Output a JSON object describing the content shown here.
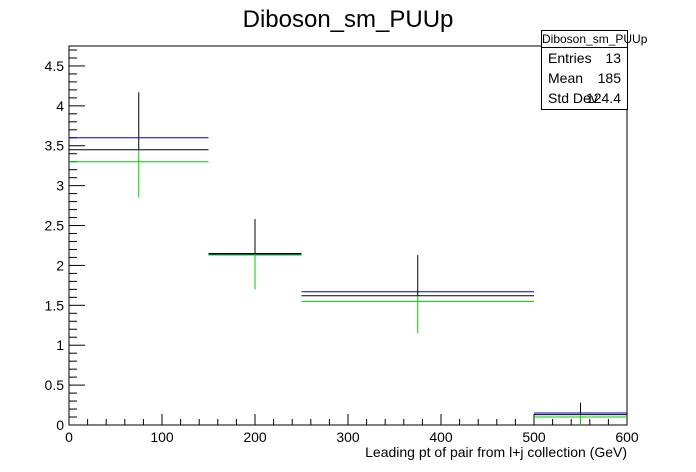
{
  "chart_data": {
    "type": "histogram",
    "title": "Diboson_sm_PUUp",
    "xlabel": "Leading pt of pair from l+j collection (GeV)",
    "ylabel": "",
    "xlim": [
      0,
      600
    ],
    "ylim": [
      0,
      4.75
    ],
    "x_ticks": [
      0,
      100,
      200,
      300,
      400,
      500,
      600
    ],
    "y_ticks": [
      0,
      0.5,
      1,
      1.5,
      2,
      2.5,
      3,
      3.5,
      4,
      4.5
    ],
    "grid": false,
    "bins": [
      {
        "xlow": 0,
        "xhigh": 150,
        "xcenter": 75,
        "value": 3.45,
        "err_low": 2.85,
        "err_high": 4.17,
        "blue": 3.6,
        "green": 3.3
      },
      {
        "xlow": 150,
        "xhigh": 250,
        "xcenter": 200,
        "value": 2.15,
        "err_low": 1.7,
        "err_high": 2.58,
        "blue": 2.14,
        "green": 2.13
      },
      {
        "xlow": 250,
        "xhigh": 500,
        "xcenter": 375,
        "value": 1.62,
        "err_low": 1.15,
        "err_high": 2.13,
        "blue": 1.67,
        "green": 1.55
      },
      {
        "xlow": 500,
        "xhigh": 600,
        "xcenter": 550,
        "value": 0.13,
        "err_low": 0.0,
        "err_high": 0.28,
        "blue": 0.15,
        "green": 0.1
      }
    ],
    "colors": {
      "nominal": "#000000",
      "up": "#0000cc",
      "down": "#00cc00"
    },
    "stats": {
      "name": "Diboson_sm_PUUp",
      "rows": [
        {
          "label": "Entries",
          "value": "13"
        },
        {
          "label": "Mean",
          "value": "185"
        },
        {
          "label": "Std Dev",
          "value": "124.4"
        }
      ]
    }
  }
}
